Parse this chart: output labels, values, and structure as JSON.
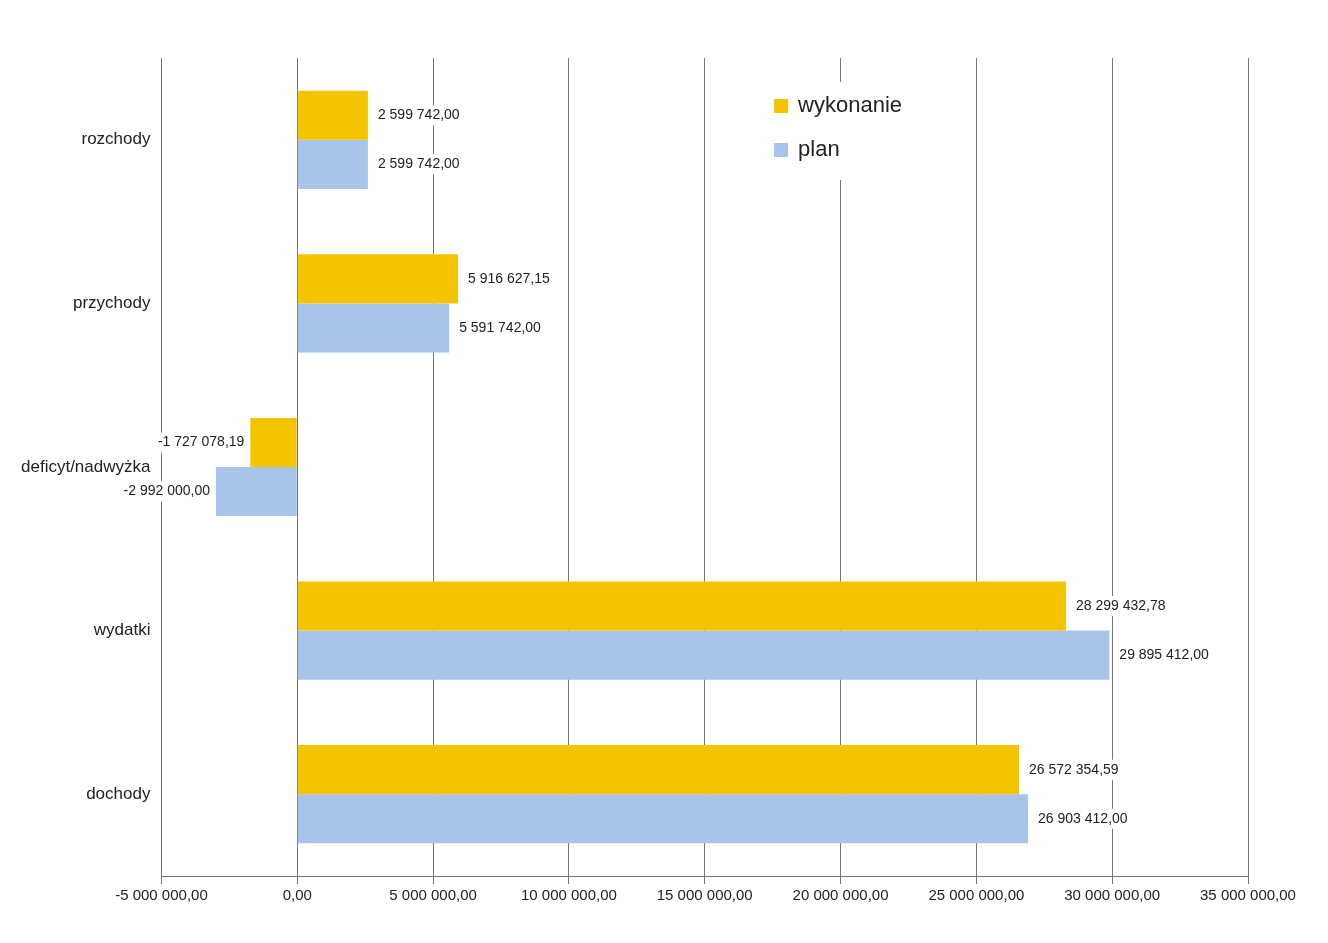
{
  "chart_data": {
    "type": "bar",
    "orientation": "horizontal",
    "categories": [
      "rozchody",
      "przychody",
      "deficyt/nadwyżka",
      "wydatki",
      "dochody"
    ],
    "series": [
      {
        "name": "wykonanie",
        "color": "#f5c400",
        "values": [
          2599742.0,
          5916627.15,
          -1727078.19,
          28299432.78,
          26572354.59
        ],
        "value_labels": [
          "2 599 742,00",
          "5 916 627,15",
          "-1 727 078,19",
          "28 299 432,78",
          "26 572 354,59"
        ]
      },
      {
        "name": "plan",
        "color": "#a9c4ea",
        "values": [
          2599742.0,
          5591742.0,
          -2992000.0,
          29895412.0,
          26903412.0
        ],
        "value_labels": [
          "2 599 742,00",
          "5 591 742,00",
          "-2 992 000,00",
          "29 895 412,00",
          "26 903 412,00"
        ]
      }
    ],
    "xlim": [
      -5000000,
      35000000
    ],
    "xticks": [
      {
        "value": -5000000,
        "label": "-5 000 000,00"
      },
      {
        "value": 0,
        "label": "0,00"
      },
      {
        "value": 5000000,
        "label": "5 000 000,00"
      },
      {
        "value": 10000000,
        "label": "10 000 000,00"
      },
      {
        "value": 15000000,
        "label": "15 000 000,00"
      },
      {
        "value": 20000000,
        "label": "20 000 000,00"
      },
      {
        "value": 25000000,
        "label": "25 000 000,00"
      },
      {
        "value": 30000000,
        "label": "30 000 000,00"
      },
      {
        "value": 35000000,
        "label": "35 000 000,00"
      }
    ],
    "grid": "x",
    "legend": "top right"
  }
}
